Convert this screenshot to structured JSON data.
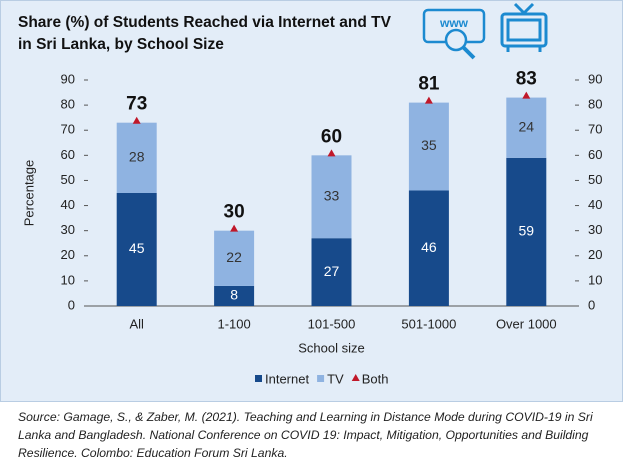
{
  "chart_data": {
    "type": "bar",
    "title": "Share (%) of Students Reached via Internet and TV in Sri Lanka, by School Size",
    "categories": [
      "All",
      "1-100",
      "101-500",
      "501-1000",
      "Over 1000"
    ],
    "series": [
      {
        "name": "Internet",
        "color": "#174a8b",
        "values": [
          45,
          8,
          27,
          46,
          59
        ]
      },
      {
        "name": "TV",
        "color": "#8fb3e1",
        "values": [
          28,
          22,
          33,
          35,
          24
        ]
      },
      {
        "name": "Both",
        "color": "#c0182a",
        "values": [
          73,
          30,
          60,
          81,
          83
        ],
        "marker": "triangle"
      }
    ],
    "xlabel": "School size",
    "ylabel": "Percentage",
    "ylim": [
      0,
      90
    ],
    "yticks": [
      0,
      10,
      20,
      30,
      40,
      50,
      60,
      70,
      80,
      90
    ],
    "y2lim": [
      0,
      90
    ],
    "y2ticks": [
      0,
      10,
      20,
      30,
      40,
      50,
      60,
      70,
      80,
      90
    ],
    "stacked": true,
    "grid": false,
    "legend": "bottom",
    "source": "Source: Gamage, S., & Zaber, M. (2021). Teaching and Learning in Distance Mode during COVID-19 in Sri Lanka and Bangladesh. National Conference on COVID 19: Impact, Mitigation, Opportunities and Building Resilience. Colombo: Education Forum Sri Lanka."
  }
}
